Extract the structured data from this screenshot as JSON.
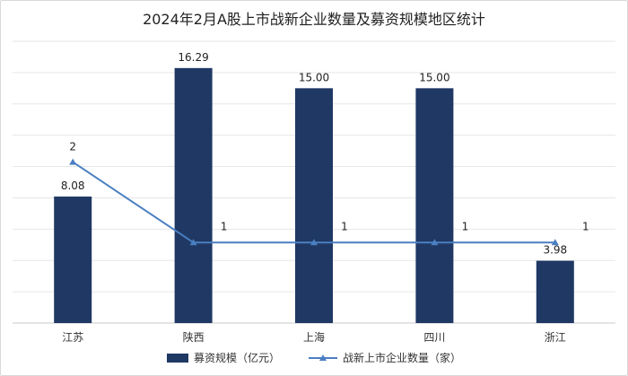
{
  "chart_data": {
    "type": "bar",
    "title": "2024年2月A股上市战新企业数量及募资规模地区统计",
    "categories": [
      "江苏",
      "陕西",
      "上海",
      "四川",
      "浙江"
    ],
    "series": [
      {
        "name": "募资规模（亿元）",
        "type": "bar",
        "axis": "left",
        "values": [
          8.08,
          16.29,
          15.0,
          15.0,
          3.98
        ],
        "labels": [
          "8.08",
          "16.29",
          "15.00",
          "15.00",
          "3.98"
        ],
        "color": "#1f3864"
      },
      {
        "name": "战新上市企业数量（家）",
        "type": "line",
        "axis": "right",
        "values": [
          2,
          1,
          1,
          1,
          1
        ],
        "labels": [
          "2",
          "1",
          "1",
          "1",
          "1"
        ],
        "color": "#4a7fc1"
      }
    ],
    "bar_axis_range": [
      0,
      18
    ],
    "line_axis_range": [
      0,
      3.5
    ],
    "gridlines": true,
    "legend_position": "bottom"
  }
}
